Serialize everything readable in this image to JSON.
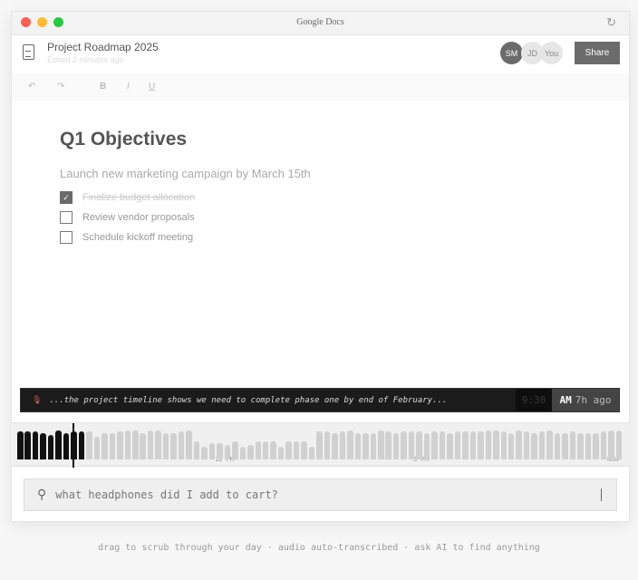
{
  "window": {
    "title": "Google Docs",
    "traffic_colors": [
      "#fe5f57",
      "#febc2e",
      "#28c840"
    ]
  },
  "header": {
    "doc_title": "Project Roadmap 2025",
    "edited": "Edited 2 minutes ago",
    "avatars": [
      "SM",
      "JD",
      "You"
    ],
    "share_label": "Share"
  },
  "toolbar": {
    "bold": "B",
    "italic": "I",
    "underline": "U"
  },
  "document": {
    "heading": "Q1 Objectives",
    "paragraph": "Launch new marketing campaign by March 15th",
    "tasks": [
      {
        "label": "Finalize budget allocation",
        "checked": true
      },
      {
        "label": "Review vendor proposals",
        "checked": false
      },
      {
        "label": "Schedule kickoff meeting",
        "checked": false
      }
    ]
  },
  "transcript": {
    "text": "...the project timeline shows we need to complete phase one by end of February...",
    "time": "9:30",
    "ampm": "AM",
    "ago": "7h ago"
  },
  "timeline": {
    "labels": [
      "12 PM",
      "3 PM",
      "NOW"
    ],
    "played_bars": 9,
    "levels": [
      0.85,
      0.85,
      0.85,
      0.8,
      0.75,
      0.9,
      0.8,
      0.85,
      0.85,
      0.85,
      0.7,
      0.8,
      0.8,
      0.85,
      0.9,
      0.9,
      0.8,
      0.9,
      0.9,
      0.8,
      0.8,
      0.85,
      0.9,
      0.55,
      0.4,
      0.5,
      0.5,
      0.45,
      0.55,
      0.4,
      0.45,
      0.55,
      0.55,
      0.55,
      0.4,
      0.55,
      0.55,
      0.55,
      0.4,
      0.85,
      0.85,
      0.8,
      0.85,
      0.9,
      0.8,
      0.8,
      0.8,
      0.9,
      0.85,
      0.8,
      0.85,
      0.85,
      0.85,
      0.8,
      0.85,
      0.85,
      0.8,
      0.85,
      0.85,
      0.85,
      0.85,
      0.9,
      0.9,
      0.85,
      0.8,
      0.9,
      0.85,
      0.8,
      0.85,
      0.9,
      0.8,
      0.8,
      0.85,
      0.8,
      0.8,
      0.8,
      0.85,
      0.9,
      0.9
    ]
  },
  "search": {
    "placeholder": "what headphones did I add to cart?"
  },
  "footer": "drag to scrub through your day · audio auto-transcribed · ask AI to find anything"
}
